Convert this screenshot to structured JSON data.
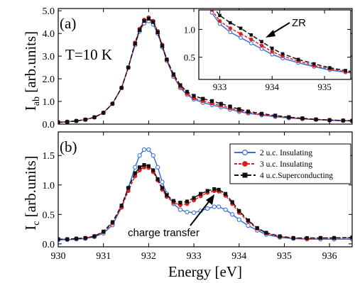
{
  "chart_data": [
    {
      "panel": "(a)",
      "type": "line",
      "ylabel_main": "I",
      "ylabel_sub": "ab",
      "ylabel_rest": " [arb.units]",
      "xlim": [
        930,
        936.5
      ],
      "ylim": [
        0,
        5.1
      ],
      "yticks": [
        "0.0",
        "1.0",
        "2.0",
        "3.0",
        "4.0",
        "5.0"
      ],
      "annotation": "T=10 K",
      "series": [
        {
          "name": "2 u.c. Insulating",
          "color": "#3a6fd8",
          "marker": "open-circle",
          "x": [
            930.0,
            930.2,
            930.4,
            930.6,
            930.8,
            931.0,
            931.2,
            931.4,
            931.55,
            931.7,
            931.8,
            931.9,
            932.0,
            932.1,
            932.2,
            932.3,
            932.4,
            932.55,
            932.7,
            932.85,
            933.0,
            933.2,
            933.4,
            933.6,
            933.8,
            934.0,
            934.2,
            934.5,
            934.8,
            935.1,
            935.4,
            935.7,
            936.0,
            936.3,
            936.5
          ],
          "y": [
            0.08,
            0.1,
            0.14,
            0.2,
            0.3,
            0.5,
            0.9,
            1.6,
            2.5,
            3.5,
            4.1,
            4.45,
            4.55,
            4.4,
            4.0,
            3.4,
            2.8,
            2.1,
            1.6,
            1.3,
            1.1,
            0.95,
            0.85,
            0.75,
            0.65,
            0.55,
            0.48,
            0.4,
            0.33,
            0.27,
            0.23,
            0.2,
            0.17,
            0.15,
            0.14
          ]
        },
        {
          "name": "3 u.c. Insulating",
          "color": "#e02020",
          "marker": "filled-circle",
          "x": [
            930.0,
            930.2,
            930.4,
            930.6,
            930.8,
            931.0,
            931.2,
            931.4,
            931.55,
            931.7,
            931.8,
            931.9,
            932.0,
            932.1,
            932.2,
            932.3,
            932.4,
            932.55,
            932.7,
            932.85,
            933.0,
            933.2,
            933.4,
            933.6,
            933.8,
            934.0,
            934.2,
            934.5,
            934.8,
            935.1,
            935.4,
            935.7,
            936.0,
            936.3,
            936.5
          ],
          "y": [
            0.08,
            0.1,
            0.14,
            0.2,
            0.3,
            0.5,
            0.9,
            1.6,
            2.5,
            3.6,
            4.2,
            4.6,
            4.7,
            4.55,
            4.1,
            3.5,
            2.85,
            2.15,
            1.65,
            1.35,
            1.15,
            1.02,
            0.92,
            0.82,
            0.71,
            0.6,
            0.52,
            0.43,
            0.35,
            0.29,
            0.24,
            0.2,
            0.18,
            0.16,
            0.15
          ]
        },
        {
          "name": "4 u.c.Superconducting",
          "color": "#111111",
          "marker": "filled-square",
          "x": [
            930.0,
            930.2,
            930.4,
            930.6,
            930.8,
            931.0,
            931.2,
            931.4,
            931.55,
            931.7,
            931.8,
            931.9,
            932.0,
            932.1,
            932.2,
            932.3,
            932.4,
            932.55,
            932.7,
            932.85,
            933.0,
            933.2,
            933.4,
            933.6,
            933.8,
            934.0,
            934.2,
            934.5,
            934.8,
            935.1,
            935.4,
            935.7,
            936.0,
            936.3,
            936.5
          ],
          "y": [
            0.08,
            0.1,
            0.14,
            0.2,
            0.3,
            0.5,
            0.9,
            1.6,
            2.5,
            3.55,
            4.15,
            4.55,
            4.65,
            4.5,
            4.05,
            3.45,
            2.85,
            2.2,
            1.72,
            1.43,
            1.25,
            1.12,
            1.02,
            0.9,
            0.78,
            0.66,
            0.56,
            0.46,
            0.38,
            0.31,
            0.26,
            0.21,
            0.18,
            0.16,
            0.15
          ]
        }
      ],
      "inset": {
        "xlim": [
          932.6,
          935.5
        ],
        "ylim": [
          0.1,
          1.35
        ],
        "xticks": [
          "933",
          "934",
          "935"
        ],
        "yticks": [
          "0.5",
          "1.0"
        ],
        "annotation": "ZR"
      }
    },
    {
      "panel": "(b)",
      "type": "line",
      "ylabel_main": "I",
      "ylabel_sub": "c",
      "ylabel_rest": " [arb.units]",
      "xlabel": "Energy [eV]",
      "xlim": [
        930,
        936.5
      ],
      "ylim": [
        -0.05,
        1.9
      ],
      "xticks": [
        "930",
        "931",
        "932",
        "933",
        "934",
        "935",
        "936"
      ],
      "yticks": [
        "0.0",
        "0.5",
        "1.0",
        "1.5"
      ],
      "annotation": "charge transfer",
      "legend_position": "top-right",
      "series": [
        {
          "name": "2 u.c. Insulating",
          "color": "#3a6fd8",
          "marker": "open-circle",
          "x": [
            930.0,
            930.2,
            930.4,
            930.6,
            930.8,
            931.0,
            931.2,
            931.4,
            931.55,
            931.7,
            931.8,
            931.9,
            932.0,
            932.1,
            932.2,
            932.3,
            932.4,
            932.55,
            932.7,
            932.85,
            933.0,
            933.15,
            933.3,
            933.45,
            933.55,
            933.7,
            933.85,
            934.0,
            934.2,
            934.4,
            934.6,
            934.9,
            935.2,
            935.5,
            935.8,
            936.1,
            936.5
          ],
          "y": [
            0.07,
            0.07,
            0.08,
            0.09,
            0.12,
            0.18,
            0.32,
            0.62,
            0.95,
            1.3,
            1.5,
            1.6,
            1.6,
            1.5,
            1.3,
            1.05,
            0.85,
            0.68,
            0.58,
            0.54,
            0.53,
            0.56,
            0.6,
            0.63,
            0.63,
            0.58,
            0.5,
            0.41,
            0.31,
            0.23,
            0.16,
            0.11,
            0.09,
            0.08,
            0.08,
            0.08,
            0.08
          ]
        },
        {
          "name": "3 u.c. Insulating",
          "color": "#e02020",
          "marker": "filled-circle",
          "x": [
            930.0,
            930.2,
            930.4,
            930.6,
            930.8,
            931.0,
            931.2,
            931.4,
            931.55,
            931.7,
            931.8,
            931.9,
            932.0,
            932.1,
            932.2,
            932.3,
            932.4,
            932.55,
            932.7,
            932.85,
            933.0,
            933.15,
            933.3,
            933.45,
            933.55,
            933.7,
            933.85,
            934.0,
            934.2,
            934.4,
            934.6,
            934.9,
            935.2,
            935.5,
            935.8,
            936.1,
            936.5
          ],
          "y": [
            0.08,
            0.08,
            0.09,
            0.1,
            0.13,
            0.2,
            0.35,
            0.62,
            0.9,
            1.15,
            1.25,
            1.3,
            1.29,
            1.22,
            1.08,
            0.92,
            0.8,
            0.7,
            0.66,
            0.68,
            0.74,
            0.81,
            0.87,
            0.9,
            0.89,
            0.82,
            0.68,
            0.53,
            0.38,
            0.26,
            0.18,
            0.12,
            0.1,
            0.09,
            0.1,
            0.1,
            0.1
          ]
        },
        {
          "name": "4 u.c.Superconducting",
          "color": "#111111",
          "marker": "filled-square",
          "x": [
            930.0,
            930.2,
            930.4,
            930.6,
            930.8,
            931.0,
            931.2,
            931.4,
            931.55,
            931.7,
            931.8,
            931.9,
            932.0,
            932.1,
            932.2,
            932.3,
            932.4,
            932.55,
            932.7,
            932.85,
            933.0,
            933.15,
            933.3,
            933.45,
            933.55,
            933.7,
            933.85,
            934.0,
            934.2,
            934.4,
            934.6,
            934.9,
            935.2,
            935.5,
            935.8,
            936.1,
            936.5
          ],
          "y": [
            0.08,
            0.08,
            0.09,
            0.1,
            0.13,
            0.21,
            0.37,
            0.65,
            0.95,
            1.2,
            1.3,
            1.34,
            1.32,
            1.25,
            1.1,
            0.95,
            0.83,
            0.73,
            0.7,
            0.72,
            0.78,
            0.85,
            0.9,
            0.93,
            0.92,
            0.85,
            0.71,
            0.56,
            0.4,
            0.27,
            0.19,
            0.13,
            0.1,
            0.1,
            0.1,
            0.1,
            0.11
          ]
        }
      ]
    }
  ]
}
